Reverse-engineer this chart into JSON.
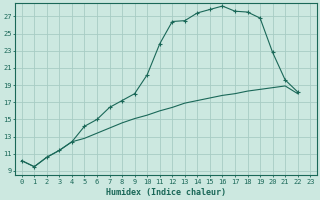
{
  "xlabel": "Humidex (Indice chaleur)",
  "bg_color": "#cce8e0",
  "grid_color": "#a8ccc4",
  "line_color": "#1a6858",
  "xlim_min": -0.5,
  "xlim_max": 23.5,
  "ylim_min": 8.5,
  "ylim_max": 28.5,
  "yticks": [
    9,
    11,
    13,
    15,
    17,
    19,
    21,
    23,
    25,
    27
  ],
  "xticks": [
    0,
    1,
    2,
    3,
    4,
    5,
    6,
    7,
    8,
    9,
    10,
    11,
    12,
    13,
    14,
    15,
    16,
    17,
    18,
    19,
    20,
    21,
    22,
    23
  ],
  "line1_x": [
    0,
    1,
    2,
    3,
    4,
    5,
    6,
    7,
    8,
    9,
    10,
    11,
    12,
    13,
    14,
    15,
    16,
    17,
    18,
    19,
    20,
    21,
    22
  ],
  "line1_y": [
    10.2,
    9.5,
    10.6,
    11.4,
    12.4,
    14.2,
    15.0,
    16.4,
    17.2,
    18.0,
    20.2,
    23.8,
    26.4,
    26.5,
    27.4,
    27.8,
    28.2,
    27.6,
    27.5,
    26.8,
    22.8,
    19.6,
    18.2
  ],
  "line2_x": [
    0,
    1,
    2,
    3,
    4,
    5,
    6,
    7,
    8,
    9,
    10,
    11,
    12,
    13,
    14,
    15,
    16,
    17,
    18,
    19,
    20,
    21,
    22
  ],
  "line2_y": [
    10.2,
    9.5,
    10.6,
    11.4,
    12.4,
    12.8,
    13.4,
    14.0,
    14.6,
    15.1,
    15.5,
    16.0,
    16.4,
    16.9,
    17.2,
    17.5,
    17.8,
    18.0,
    18.3,
    18.5,
    18.7,
    18.9,
    18.0
  ],
  "tick_fontsize": 5.0,
  "xlabel_fontsize": 6.0
}
